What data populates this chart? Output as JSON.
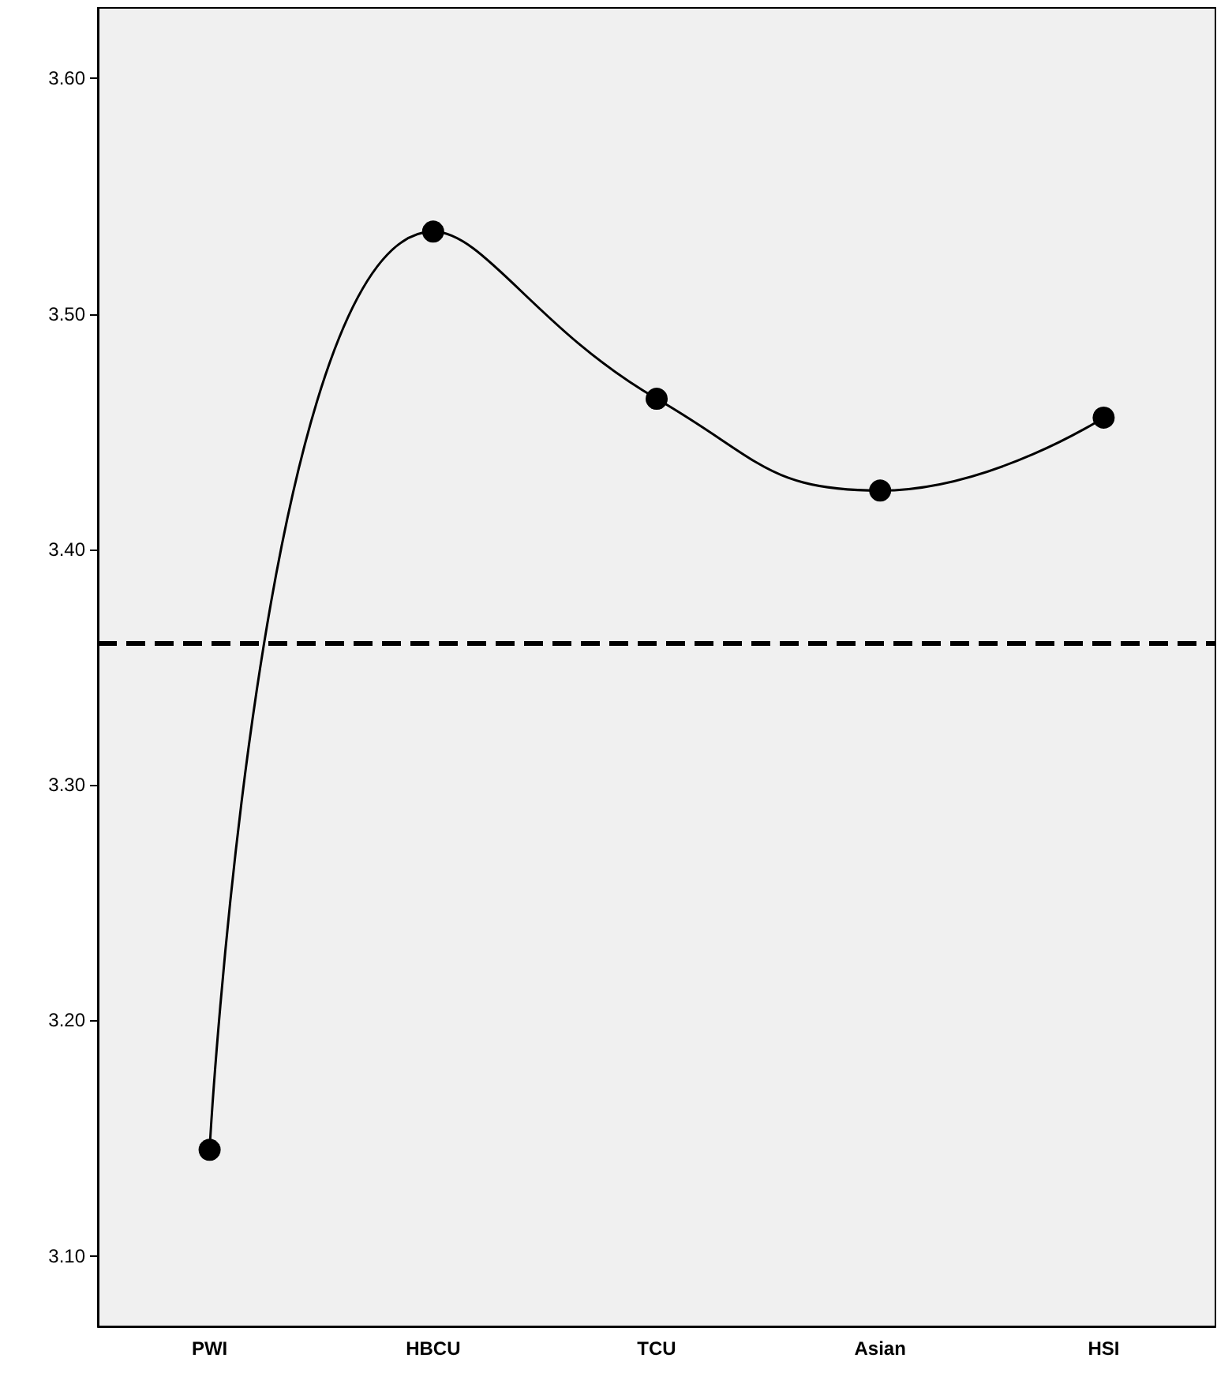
{
  "chart_data": {
    "type": "line",
    "categories": [
      "PWI",
      "HBCU",
      "TCU",
      "Asian",
      "HSI"
    ],
    "series": [
      {
        "color": "#000000",
        "values": [
          3.145,
          3.535,
          3.464,
          3.425,
          3.456
        ]
      }
    ],
    "ylim": [
      3.07,
      3.63
    ],
    "yticks": [
      {
        "value": 3.1,
        "label": "3.10"
      },
      {
        "value": 3.2,
        "label": "3.20"
      },
      {
        "value": 3.3,
        "label": "3.30"
      },
      {
        "value": 3.4,
        "label": "3.40"
      },
      {
        "value": 3.5,
        "label": "3.50"
      },
      {
        "value": 3.6,
        "label": "3.60"
      }
    ],
    "ref_lines": [
      {
        "axis": "y",
        "value": 3.36,
        "color": "#000000",
        "line_style": "dashed"
      }
    ],
    "grid": false,
    "marker": "circle",
    "line_style": "solid"
  }
}
